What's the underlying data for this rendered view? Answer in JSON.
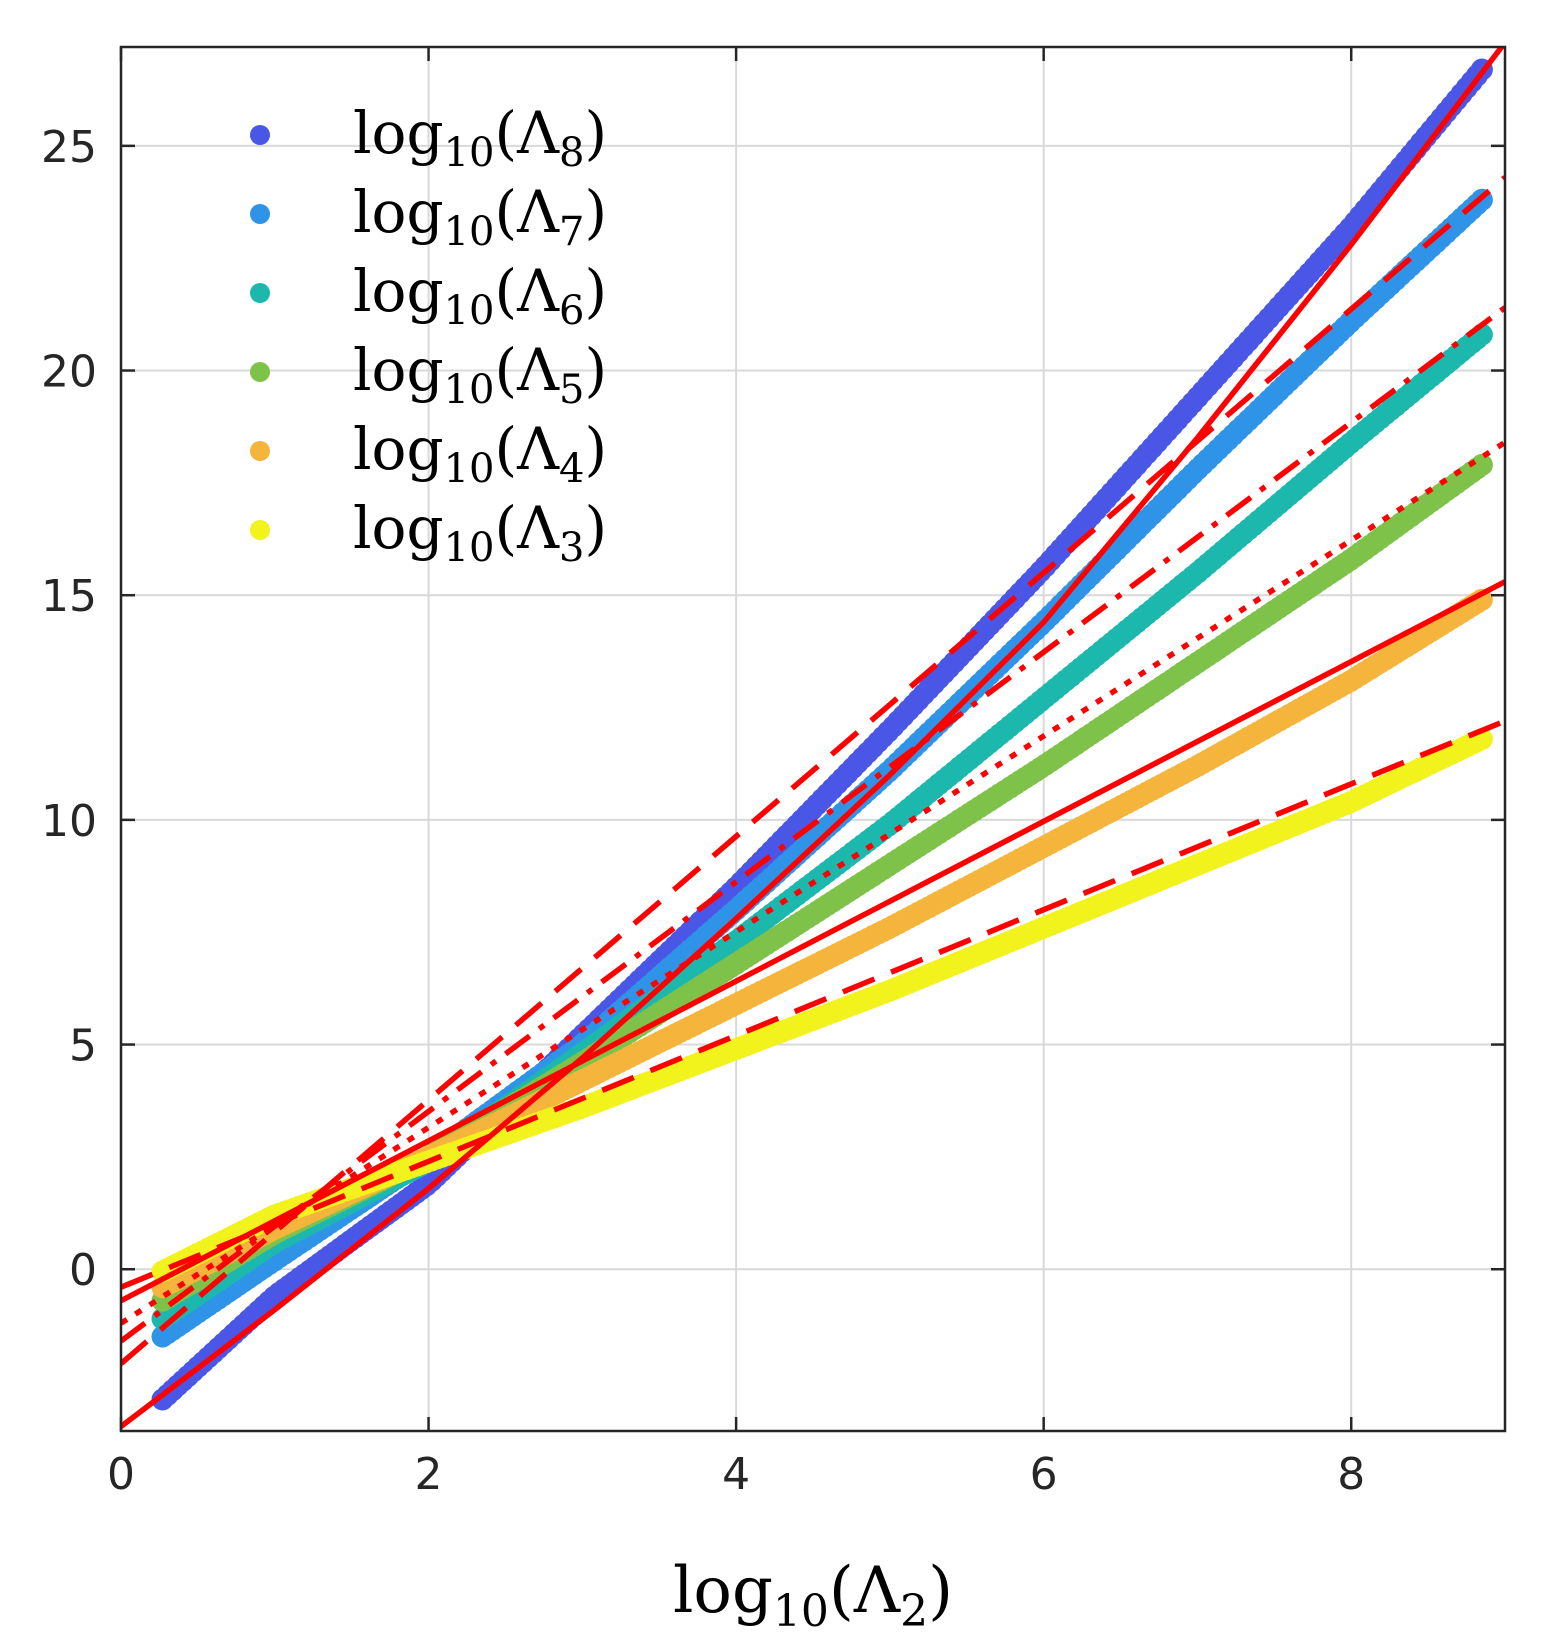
{
  "chart_data": {
    "type": "scatter",
    "title": "",
    "xlabel": {
      "base": "log",
      "sub": "10",
      "open": "(Λ",
      "idx": "2",
      "close": ")"
    },
    "ylabel": "",
    "xlim": [
      0,
      9
    ],
    "ylim": [
      -3.6,
      27.2
    ],
    "xticks": [
      0,
      2,
      4,
      6,
      8
    ],
    "yticks": [
      0,
      5,
      10,
      15,
      20,
      25
    ],
    "xtick_labels": [
      "0",
      "2",
      "4",
      "6",
      "8"
    ],
    "ytick_labels": [
      "0",
      "5",
      "10",
      "15",
      "20",
      "25"
    ],
    "grid": true,
    "legend_position": "top-left",
    "x_range_points": [
      0.27,
      8.85
    ],
    "series": [
      {
        "name": "log10(Λ8)",
        "idx": "8",
        "color": "#4a57e6",
        "x": [
          0.27,
          1,
          2,
          3,
          4,
          5,
          6,
          7,
          8,
          8.85
        ],
        "y": [
          -2.9,
          -0.6,
          1.9,
          5.2,
          8.5,
          12.0,
          15.6,
          19.4,
          23.2,
          26.7
        ],
        "fit": {
          "style": "solid",
          "x": [
            0,
            1,
            2,
            3,
            4,
            5,
            6,
            7,
            8,
            9
          ],
          "y": [
            -3.5,
            -0.9,
            1.8,
            4.7,
            7.8,
            11.0,
            14.4,
            18.5,
            22.8,
            27.3
          ]
        }
      },
      {
        "name": "log10(Λ7)",
        "idx": "7",
        "color": "#2f94e8",
        "x": [
          0.27,
          1,
          2,
          3,
          4,
          5,
          6,
          7,
          8,
          8.85
        ],
        "y": [
          -1.5,
          0.2,
          2.5,
          5.0,
          8.0,
          11.1,
          14.4,
          17.8,
          21.1,
          23.8
        ],
        "fit": {
          "style": "dashed",
          "x": [
            0,
            9
          ],
          "y": [
            -2.1,
            24.3
          ]
        }
      },
      {
        "name": "log10(Λ6)",
        "idx": "6",
        "color": "#1cb8ae",
        "x": [
          0.27,
          1,
          2,
          3,
          4,
          5,
          6,
          7,
          8,
          8.85
        ],
        "y": [
          -1.1,
          0.6,
          2.4,
          4.8,
          7.3,
          9.9,
          12.7,
          15.5,
          18.4,
          20.8
        ],
        "fit": {
          "style": "dash-dot",
          "x": [
            0,
            9
          ],
          "y": [
            -1.6,
            21.4
          ]
        }
      },
      {
        "name": "log10(Λ5)",
        "idx": "5",
        "color": "#7ec24a",
        "x": [
          0.27,
          1,
          2,
          3,
          4,
          5,
          6,
          7,
          8,
          8.85
        ],
        "y": [
          -0.7,
          0.8,
          2.5,
          4.6,
          6.8,
          9.0,
          11.2,
          13.5,
          15.8,
          17.9
        ],
        "fit": {
          "style": "dotted",
          "x": [
            0,
            9
          ],
          "y": [
            -1.2,
            18.4
          ]
        }
      },
      {
        "name": "log10(Λ4)",
        "idx": "4",
        "color": "#f5b53c",
        "x": [
          0.27,
          1,
          2,
          3,
          4,
          5,
          6,
          7,
          8,
          8.85
        ],
        "y": [
          -0.4,
          0.9,
          2.5,
          4.2,
          5.9,
          7.6,
          9.4,
          11.2,
          13.1,
          14.9
        ],
        "fit": {
          "style": "solid",
          "x": [
            0,
            9
          ],
          "y": [
            -0.7,
            15.3
          ]
        }
      },
      {
        "name": "log10(Λ3)",
        "idx": "3",
        "color": "#f2f21c",
        "x": [
          0.27,
          1,
          2,
          3,
          4,
          5,
          6,
          7,
          8,
          8.85
        ],
        "y": [
          -0.05,
          1.2,
          2.4,
          3.6,
          4.9,
          6.2,
          7.6,
          9.0,
          10.4,
          11.8
        ],
        "fit": {
          "style": "dashed",
          "x": [
            0,
            9
          ],
          "y": [
            -0.4,
            12.2
          ]
        }
      }
    ],
    "fit_color": "#ff0000"
  }
}
